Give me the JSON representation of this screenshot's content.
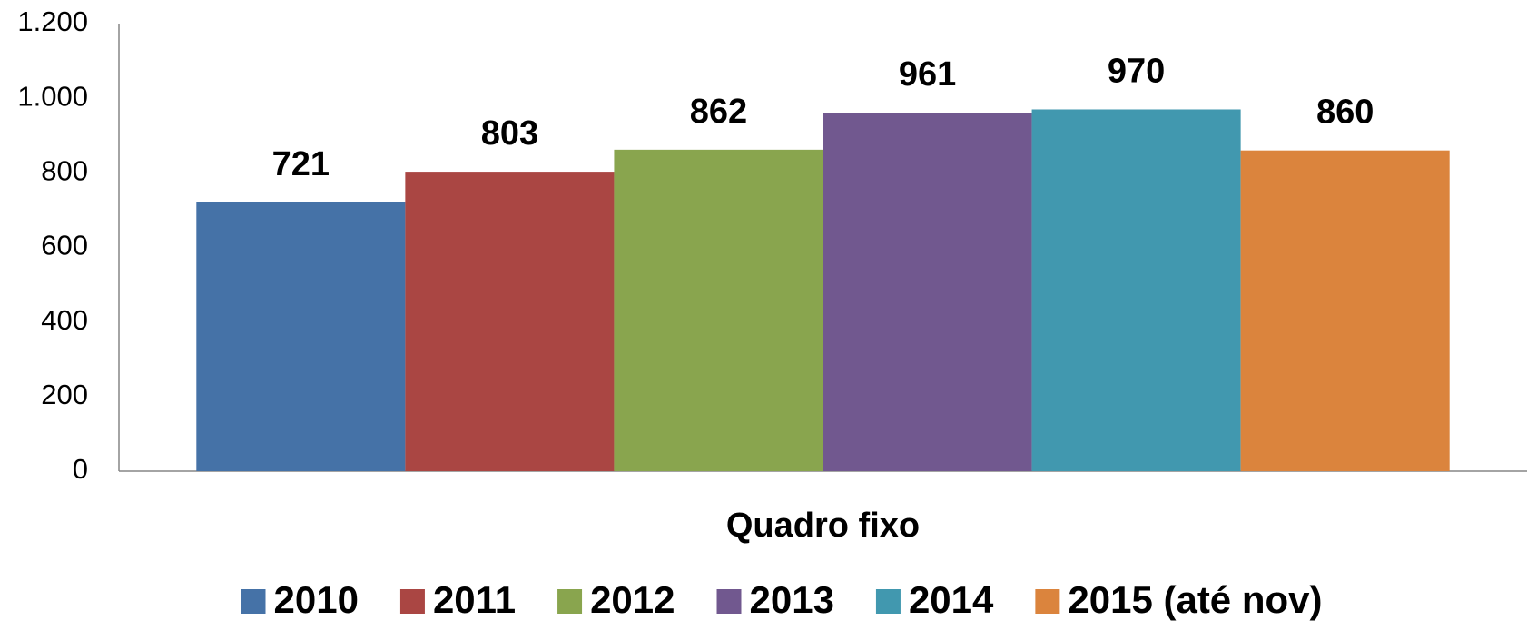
{
  "chart_data": {
    "type": "grouped-bar",
    "categories": [
      "Quadro fixo"
    ],
    "series": [
      {
        "name": "2010",
        "color": "#4572a7",
        "values": [
          721
        ]
      },
      {
        "name": "2011",
        "color": "#aa4643",
        "values": [
          803
        ]
      },
      {
        "name": "2012",
        "color": "#89a54e",
        "values": [
          862
        ]
      },
      {
        "name": "2013",
        "color": "#71588f",
        "values": [
          961
        ]
      },
      {
        "name": "2014",
        "color": "#4198af",
        "values": [
          970
        ]
      },
      {
        "name": "2015 (até nov)",
        "color": "#db843d",
        "values": [
          860
        ]
      }
    ],
    "ylim": [
      0,
      1200
    ],
    "yticks": [
      0,
      200,
      400,
      600,
      800,
      {
        "value": 1000,
        "label": "1.000"
      },
      {
        "value": 1200,
        "label": "1.200"
      }
    ],
    "grid": false,
    "legend": "bottom"
  }
}
